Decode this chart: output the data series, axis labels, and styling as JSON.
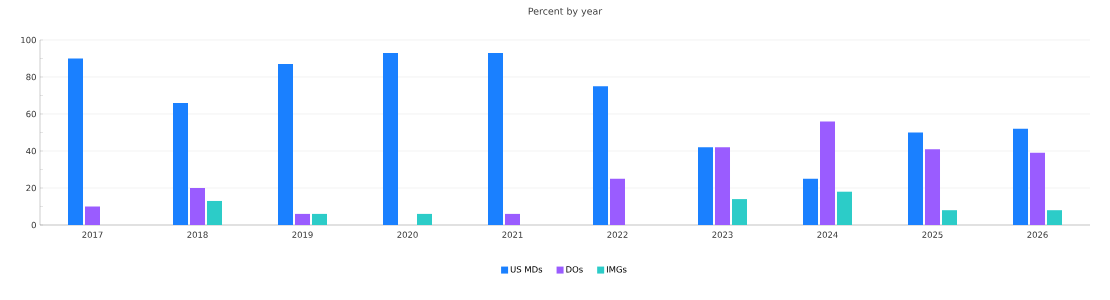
{
  "chart_data": {
    "type": "bar",
    "title": "Percent by year",
    "categories": [
      "2017",
      "2018",
      "2019",
      "2020",
      "2021",
      "2022",
      "2023",
      "2024",
      "2025",
      "2026"
    ],
    "series": [
      {
        "name": "US MDs",
        "color": "#1a80ff",
        "values": [
          90,
          66,
          87,
          93,
          93,
          75,
          42,
          25,
          50,
          52
        ]
      },
      {
        "name": "DOs",
        "color": "#9a5cff",
        "values": [
          10,
          20,
          6,
          null,
          6,
          25,
          42,
          56,
          41,
          39
        ]
      },
      {
        "name": "IMGs",
        "color": "#2cccc8",
        "values": [
          null,
          13,
          6,
          6,
          null,
          null,
          14,
          18,
          8,
          8
        ]
      }
    ],
    "ylim": [
      0,
      100
    ],
    "yticks": [
      0,
      20,
      40,
      60,
      80,
      100
    ],
    "grid": "y",
    "legend": "bottom"
  }
}
